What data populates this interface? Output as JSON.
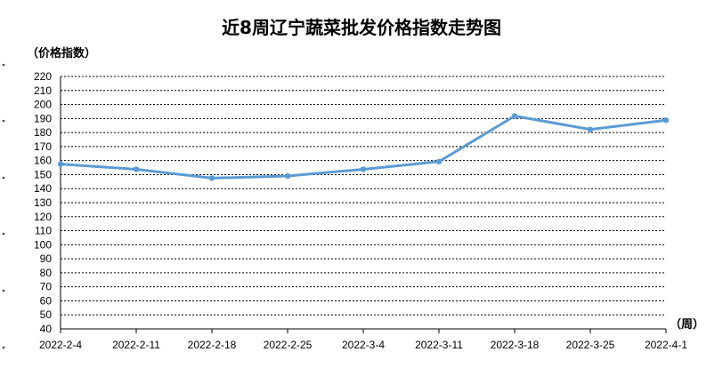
{
  "chart_data": {
    "type": "line",
    "title": "近8周辽宁蔬菜批发价格指数走势图",
    "ylabel": "（价格指数）",
    "xlabel": "（周）",
    "categories": [
      "2022-2-4",
      "2022-2-11",
      "2022-2-18",
      "2022-2-25",
      "2022-3-4",
      "2022-3-11",
      "2022-3-18",
      "2022-3-25",
      "2022-4-1"
    ],
    "series": [
      {
        "values": [
          157.5,
          153.8,
          147.5,
          149.0,
          153.8,
          159.3,
          191.8,
          182.2,
          188.8
        ]
      }
    ],
    "ylim": [
      40,
      220
    ],
    "ytick_step": 10,
    "grid": true,
    "line_color": "#5b9bd5"
  }
}
